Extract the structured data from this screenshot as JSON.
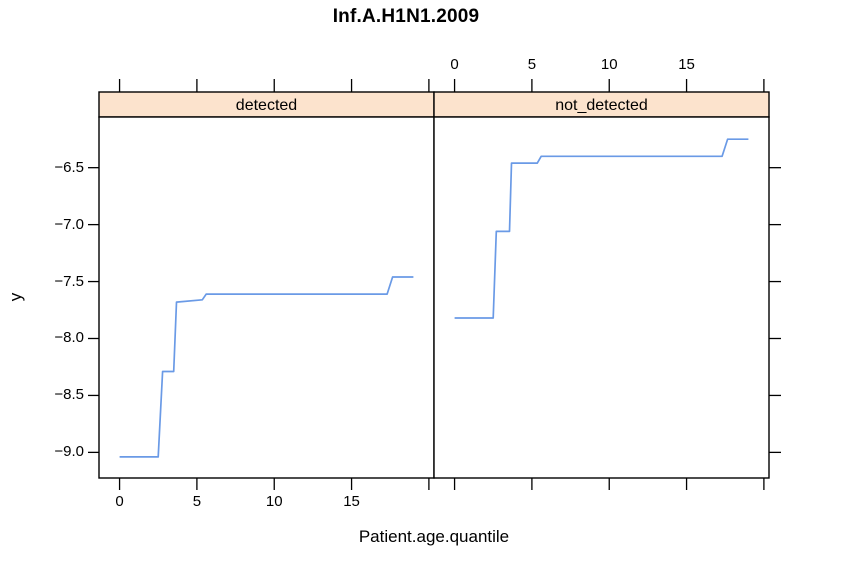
{
  "chart_data": {
    "type": "line",
    "title": "Inf.A.H1N1.2009",
    "xlabel": "Patient.age.quantile",
    "ylabel": "y",
    "layout_hint": "lattice 1x2 conditioned panels, shared scales, alternating axis labels (bottom labels under left panel, top labels over right panel), grid off, no legend",
    "xlim": [
      -1.33,
      20.33
    ],
    "ylim": [
      -9.225,
      -6.055
    ],
    "x_ticks": {
      "values": [
        0,
        5,
        10,
        15,
        20
      ],
      "labels": [
        "0",
        "5",
        "10",
        "15",
        ""
      ]
    },
    "y_ticks": {
      "values": [
        -9.0,
        -8.5,
        -8.0,
        -7.5,
        -7.0,
        -6.5
      ],
      "labels": [
        "−9.0",
        "−8.5",
        "−8.0",
        "−7.5",
        "−7.0",
        "−6.5"
      ]
    },
    "panels": [
      {
        "strip_label": "detected",
        "points": [
          [
            0,
            -9.04
          ],
          [
            2.5,
            -9.04
          ],
          [
            2.78,
            -8.29
          ],
          [
            3.5,
            -8.29
          ],
          [
            3.68,
            -7.68
          ],
          [
            5.35,
            -7.66
          ],
          [
            5.6,
            -7.61
          ],
          [
            17.3,
            -7.61
          ],
          [
            17.65,
            -7.46
          ],
          [
            19,
            -7.46
          ]
        ]
      },
      {
        "strip_label": "not_detected",
        "points": [
          [
            0,
            -7.82
          ],
          [
            2.5,
            -7.82
          ],
          [
            2.7,
            -7.06
          ],
          [
            3.55,
            -7.06
          ],
          [
            3.68,
            -6.46
          ],
          [
            5.35,
            -6.46
          ],
          [
            5.6,
            -6.4
          ],
          [
            17.3,
            -6.4
          ],
          [
            17.65,
            -6.25
          ],
          [
            19,
            -6.25
          ]
        ]
      }
    ],
    "colors": {
      "line": "#6a9ae6",
      "strip_fill": "#fce3cd",
      "border": "#000000",
      "background": "#ffffff"
    }
  }
}
